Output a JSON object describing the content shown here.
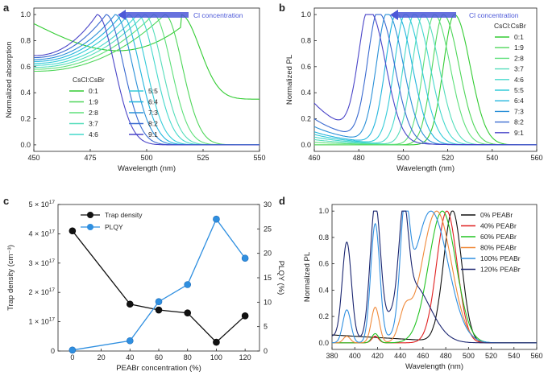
{
  "chart_data": [
    {
      "panel": "a",
      "type": "line",
      "xlabel": "Wavelength (nm)",
      "ylabel": "Normalized absorption",
      "xlim": [
        450,
        550
      ],
      "ylim": [
        -0.05,
        1.05
      ],
      "xticks": [
        "450",
        "475",
        "500",
        "525",
        "550"
      ],
      "yticks": [
        "0.0",
        "0.2",
        "0.4",
        "0.6",
        "0.8",
        "1.0"
      ],
      "arrow_label": "Cl concentration",
      "legend_title": "CsCl:CsBr",
      "legend_placement": "bottom-left",
      "series": [
        {
          "name": "0:1",
          "peak": 515,
          "color": "#33cc33"
        },
        {
          "name": "1:9",
          "peak": 508,
          "color": "#4fd65a"
        },
        {
          "name": "2:8",
          "peak": 503,
          "color": "#5ee07a"
        },
        {
          "name": "3:7",
          "peak": 499,
          "color": "#55ddbb"
        },
        {
          "name": "4:6",
          "peak": 496,
          "color": "#44d8cc"
        },
        {
          "name": "5:5",
          "peak": 492,
          "color": "#33cbd8"
        },
        {
          "name": "6:4",
          "peak": 489,
          "color": "#22b5dd"
        },
        {
          "name": "7:3",
          "peak": 486,
          "color": "#2a90d8"
        },
        {
          "name": "8:2",
          "peak": 482,
          "color": "#3a6ad0"
        },
        {
          "name": "9:1",
          "peak": 478,
          "color": "#4a45c8"
        }
      ]
    },
    {
      "panel": "b",
      "type": "line",
      "xlabel": "Wavelength (nm)",
      "ylabel": "Normalized PL",
      "xlim": [
        460,
        560
      ],
      "ylim": [
        -0.05,
        1.05
      ],
      "xticks": [
        "460",
        "480",
        "500",
        "520",
        "540",
        "560"
      ],
      "yticks": [
        "0.0",
        "0.2",
        "0.4",
        "0.6",
        "0.8",
        "1.0"
      ],
      "arrow_label": "Cl concentration",
      "legend_title": "CsCl:CsBr",
      "legend_placement": "right",
      "series": [
        {
          "name": "0:1",
          "peak": 523,
          "color": "#33cc33"
        },
        {
          "name": "1:9",
          "peak": 518,
          "color": "#4fd65a"
        },
        {
          "name": "2:8",
          "peak": 514,
          "color": "#5ee07a"
        },
        {
          "name": "3:7",
          "peak": 509,
          "color": "#55ddbb"
        },
        {
          "name": "4:6",
          "peak": 505,
          "color": "#44d8cc"
        },
        {
          "name": "5:5",
          "peak": 501,
          "color": "#33cbd8"
        },
        {
          "name": "6:4",
          "peak": 497,
          "color": "#22b5dd"
        },
        {
          "name": "7:3",
          "peak": 493,
          "color": "#2a90d8"
        },
        {
          "name": "8:2",
          "peak": 489,
          "color": "#3a6ad0"
        },
        {
          "name": "9:1",
          "peak": 485,
          "color": "#4a45c8"
        }
      ]
    },
    {
      "panel": "c",
      "type": "line",
      "xlabel": "PEABr concentration (%)",
      "ylabel_left": "Trap density (cm⁻³)",
      "ylabel_right": "PLQY (%)",
      "x": [
        0,
        40,
        60,
        80,
        100,
        120
      ],
      "xlim": [
        -10,
        130
      ],
      "xticks": [
        "0",
        "20",
        "40",
        "60",
        "80",
        "100",
        "120"
      ],
      "ylim_left": [
        0,
        5e+17
      ],
      "yticks_left": [
        {
          "base": "0",
          "exp": ""
        },
        {
          "base": "1 × 10",
          "exp": "17"
        },
        {
          "base": "2 × 10",
          "exp": "17"
        },
        {
          "base": "3 × 10",
          "exp": "17"
        },
        {
          "base": "4 × 10",
          "exp": "17"
        },
        {
          "base": "5 × 10",
          "exp": "17"
        }
      ],
      "ylim_right": [
        0,
        30
      ],
      "yticks_right": [
        "0",
        "5",
        "10",
        "15",
        "20",
        "25",
        "30"
      ],
      "legend_placement": "top-left",
      "series": [
        {
          "name": "Trap density",
          "axis": "left",
          "values": [
            4.1e+17,
            1.6e+17,
            1.4e+17,
            1.3e+17,
            3e+16,
            1.2e+17
          ],
          "color": "#111111"
        },
        {
          "name": "PLQY",
          "axis": "right",
          "values": [
            0.2,
            2.1,
            10.1,
            13.6,
            27.0,
            19.0
          ],
          "color": "#2f8fe0"
        }
      ]
    },
    {
      "panel": "d",
      "type": "line",
      "xlabel": "Wavelength (nm)",
      "ylabel": "Normalized PL",
      "xlim": [
        380,
        560
      ],
      "ylim": [
        -0.05,
        1.05
      ],
      "xticks": [
        "380",
        "400",
        "420",
        "440",
        "460",
        "480",
        "500",
        "520",
        "540",
        "560"
      ],
      "yticks": [
        "0.0",
        "0.2",
        "0.4",
        "0.6",
        "0.8",
        "1.0"
      ],
      "legend_placement": "top-right",
      "series": [
        {
          "name": "0% PEABr",
          "color": "#111111",
          "peaks": [
            {
              "x": 486,
              "h": 1.0,
              "w": 8
            }
          ],
          "tail_left": 0.06
        },
        {
          "name": "40% PEABr",
          "color": "#e02020",
          "peaks": [
            {
              "x": 481,
              "h": 1.0,
              "w": 9
            },
            {
              "x": 418,
              "h": 0.05,
              "w": 3
            }
          ],
          "tail_left": 0.0
        },
        {
          "name": "60% PEABr",
          "color": "#22c322",
          "peaks": [
            {
              "x": 477,
              "h": 1.0,
              "w": 12
            },
            {
              "x": 418,
              "h": 0.07,
              "w": 3
            }
          ],
          "tail_left": 0.0
        },
        {
          "name": "80% PEABr",
          "color": "#f08a3a",
          "peaks": [
            {
              "x": 472,
              "h": 1.0,
              "w": 13
            },
            {
              "x": 444,
              "h": 0.2,
              "w": 5
            },
            {
              "x": 418,
              "h": 0.27,
              "w": 3.5
            },
            {
              "x": 393,
              "h": 0.05,
              "w": 3
            }
          ],
          "tail_left": 0.0
        },
        {
          "name": "100% PEABr",
          "color": "#2f8fe0",
          "peaks": [
            {
              "x": 467,
              "h": 1.0,
              "w": 15
            },
            {
              "x": 444,
              "h": 0.8,
              "w": 4
            },
            {
              "x": 418,
              "h": 0.9,
              "w": 4
            },
            {
              "x": 393,
              "h": 0.25,
              "w": 3.5
            }
          ],
          "tail_left": 0.0
        },
        {
          "name": "120% PEABr",
          "color": "#1a2570",
          "peaks": [
            {
              "x": 450,
              "h": 0.45,
              "w": 16
            },
            {
              "x": 443,
              "h": 0.66,
              "w": 4
            },
            {
              "x": 418,
              "h": 1.0,
              "w": 4.5
            },
            {
              "x": 393,
              "h": 0.73,
              "w": 4
            }
          ],
          "tail_left": 0.0
        }
      ]
    }
  ]
}
